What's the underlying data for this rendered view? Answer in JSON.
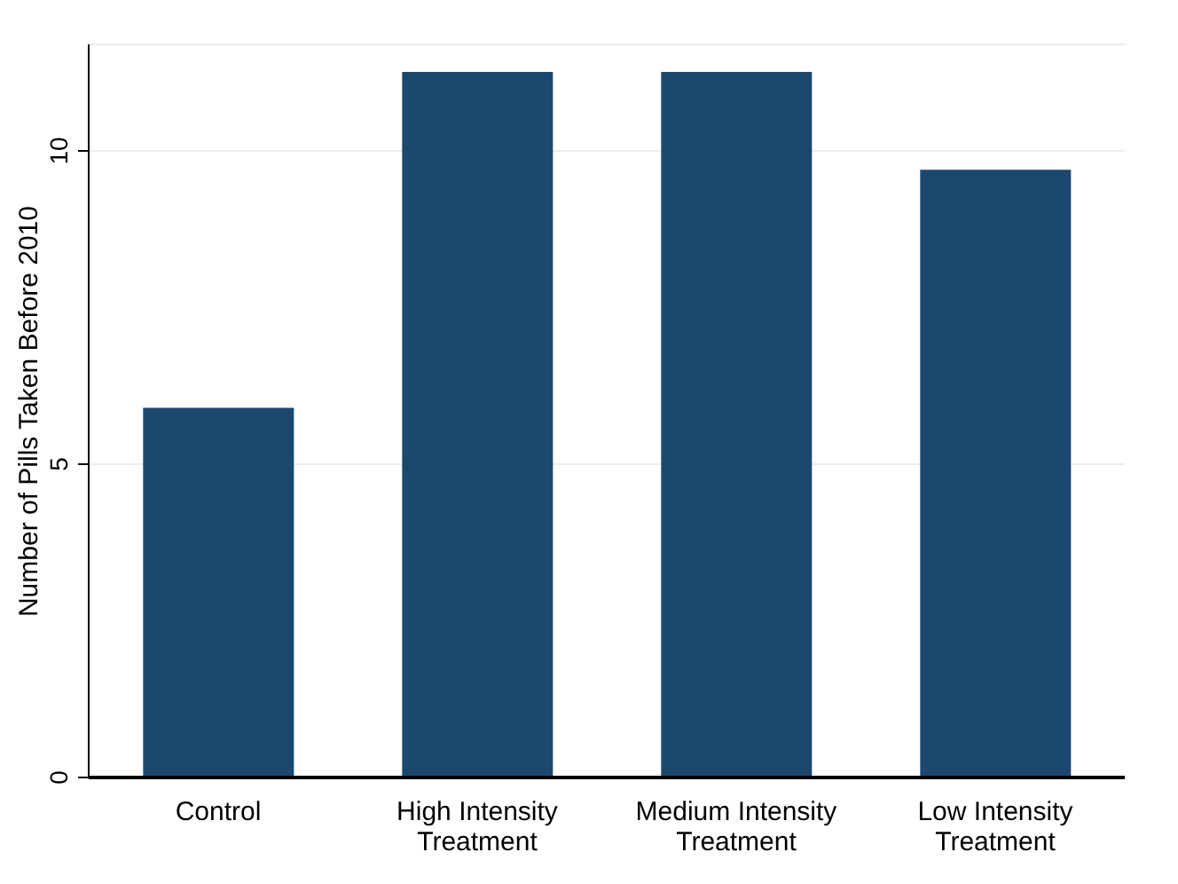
{
  "chart_data": {
    "type": "bar",
    "ylabel": "Number of Pills Taken Before 2010",
    "categories": [
      "Control",
      "High Intensity\nTreatment",
      "Medium Intensity\nTreatment",
      "Low Intensity\nTreatment"
    ],
    "values": [
      5.9,
      11.26,
      11.26,
      9.7
    ],
    "color": "#1c4870",
    "ylim": [
      0,
      11.7
    ],
    "yticks": [
      0,
      5,
      10
    ],
    "grid": "y"
  }
}
